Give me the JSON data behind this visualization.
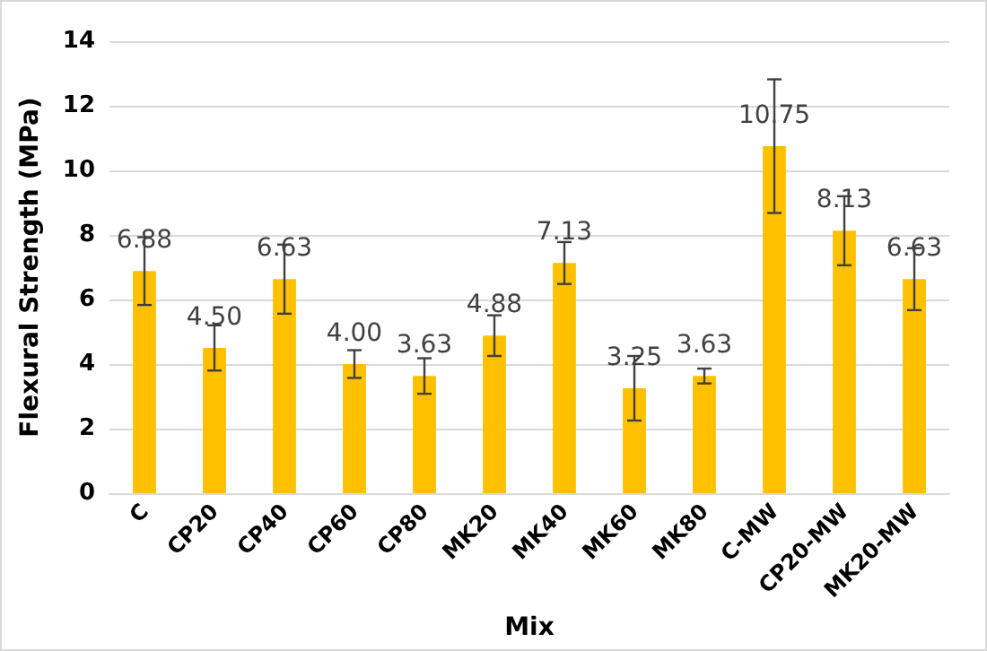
{
  "chart_data": {
    "type": "bar",
    "xlabel": "Mix",
    "ylabel": "Flexural Strength (MPa)",
    "categories": [
      "C",
      "CP20",
      "CP40",
      "CP60",
      "CP80",
      "MK20",
      "MK40",
      "MK60",
      "MK80",
      "C-MW",
      "CP20-MW",
      "MK20-MW"
    ],
    "values": [
      6.88,
      4.5,
      6.63,
      4.0,
      3.63,
      4.88,
      7.13,
      3.25,
      3.63,
      10.75,
      8.13,
      6.63
    ],
    "errors": [
      1.05,
      0.7,
      1.07,
      0.43,
      0.55,
      0.63,
      0.65,
      1.0,
      0.23,
      2.07,
      1.07,
      0.96
    ],
    "value_labels": [
      "6.88",
      "4.50",
      "6.63",
      "4.00",
      "3.63",
      "4.88",
      "7.13",
      "3.25",
      "3.63",
      "10.75",
      "8.13",
      "6.63"
    ],
    "color": "#ffc000",
    "ylim": [
      0,
      14
    ],
    "yticks": [
      0,
      2,
      4,
      6,
      8,
      10,
      12,
      14
    ],
    "grid": "y"
  }
}
